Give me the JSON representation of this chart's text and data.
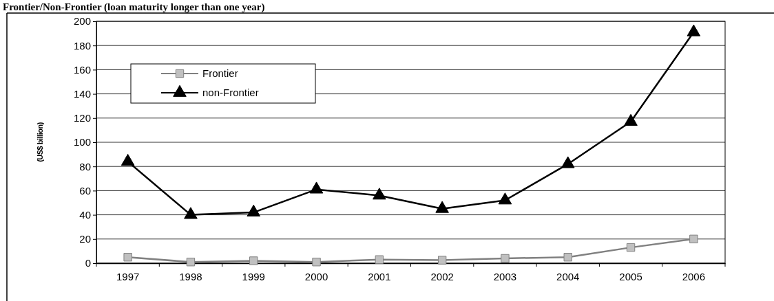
{
  "chart_data": {
    "type": "line",
    "title": "Frontier/Non-Frontier (loan maturity longer than one year)",
    "ylabel": "(US$ billion)",
    "categories": [
      "1997",
      "1998",
      "1999",
      "2000",
      "2001",
      "2002",
      "2003",
      "2004",
      "2005",
      "2006"
    ],
    "series": [
      {
        "name": "Frontier",
        "color": "#808080",
        "marker": "square",
        "values": [
          5,
          1,
          2,
          1,
          3,
          2.5,
          4,
          5,
          13,
          20
        ]
      },
      {
        "name": "non-Frontier",
        "color": "#000000",
        "marker": "triangle",
        "values": [
          84,
          40,
          42,
          61,
          56,
          45,
          52,
          82,
          117,
          191
        ]
      }
    ],
    "ylim": [
      0,
      200
    ],
    "yticks": [
      0,
      20,
      40,
      60,
      80,
      100,
      120,
      140,
      160,
      180,
      200
    ],
    "grid": "y",
    "legend": "top left"
  }
}
